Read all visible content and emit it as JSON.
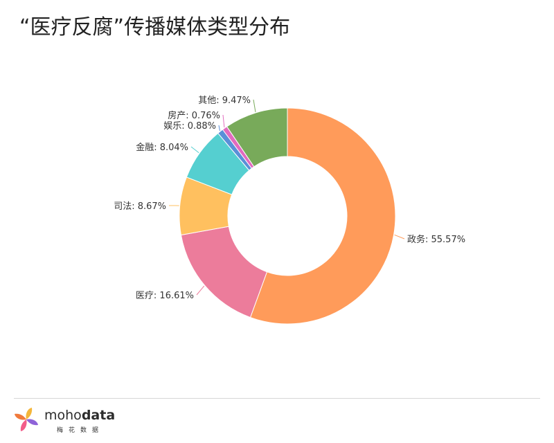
{
  "header": {
    "title": "“医疗反腐”传播媒体类型分布"
  },
  "chart_data": {
    "type": "pie",
    "style": "donut",
    "title": "“医疗反腐”传播媒体类型分布",
    "slices": [
      {
        "name": "政务",
        "value": 55.57,
        "label": "政务: 55.57%",
        "color": "#FF9B5A"
      },
      {
        "name": "医疗",
        "value": 16.61,
        "label": "医疗: 16.61%",
        "color": "#EC7C9B"
      },
      {
        "name": "司法",
        "value": 8.67,
        "label": "司法: 8.67%",
        "color": "#FFC05F"
      },
      {
        "name": "金融",
        "value": 8.04,
        "label": "金融: 8.04%",
        "color": "#55CFD0"
      },
      {
        "name": "娱乐",
        "value": 0.88,
        "label": "娱乐: 0.88%",
        "color": "#5A8FD8"
      },
      {
        "name": "房产",
        "value": 0.76,
        "label": "房产: 0.76%",
        "color": "#E26ABF"
      },
      {
        "name": "其他",
        "value": 9.47,
        "label": "其他: 9.47%",
        "color": "#78AA5A"
      }
    ]
  },
  "footer": {
    "brand_part1": "moho",
    "brand_part2": "data",
    "brand_sub": "梅花数据"
  }
}
